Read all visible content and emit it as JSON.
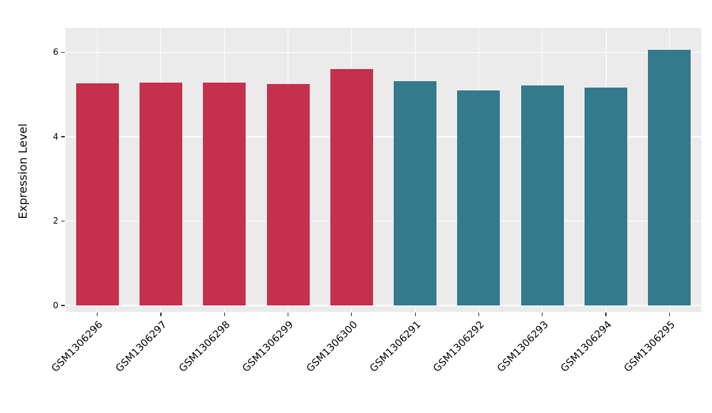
{
  "chart_data": {
    "type": "bar",
    "title": "",
    "xlabel": "",
    "ylabel": "Expression Level",
    "categories": [
      "GSM1306296",
      "GSM1306297",
      "GSM1306298",
      "GSM1306299",
      "GSM1306300",
      "GSM1306291",
      "GSM1306292",
      "GSM1306293",
      "GSM1306294",
      "GSM1306295"
    ],
    "values": [
      5.27,
      5.28,
      5.28,
      5.24,
      5.6,
      5.32,
      5.1,
      5.22,
      5.17,
      6.05
    ],
    "bar_colors": [
      "#C5304C",
      "#C5304C",
      "#C5304C",
      "#C5304C",
      "#C5304C",
      "#35798C",
      "#35798C",
      "#35798C",
      "#35798C",
      "#35798C"
    ],
    "yticks": [
      0,
      2,
      4,
      6
    ],
    "ytick_labels": [
      "0",
      "2",
      "4",
      "6"
    ],
    "ylim": [
      0,
      6.58
    ],
    "grid": {
      "horizontal": true,
      "vertical": true,
      "color": "#FFFFFF"
    },
    "panel_background": "#EBEBEB",
    "figure_background": "#FFFFFF",
    "legend": "none"
  }
}
